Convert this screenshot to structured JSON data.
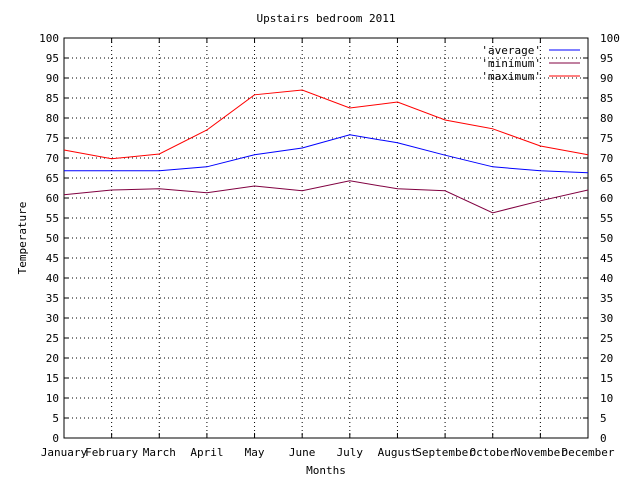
{
  "chart_data": {
    "type": "line",
    "title": "Upstairs bedroom 2011",
    "xlabel": "Months",
    "ylabel": "Temperature",
    "categories": [
      "January",
      "February",
      "March",
      "April",
      "May",
      "June",
      "July",
      "August",
      "September",
      "October",
      "November",
      "December"
    ],
    "ylim": [
      0,
      100
    ],
    "ytick_step": 5,
    "y2_mirrored": true,
    "grid": true,
    "legend_position": "top-right",
    "series": [
      {
        "name": "'average'",
        "color": "#0000ff",
        "values": [
          66.8,
          66.8,
          66.8,
          67.8,
          70.8,
          72.5,
          75.8,
          73.8,
          70.7,
          67.8,
          66.8,
          66.3
        ]
      },
      {
        "name": "'minimum'",
        "color": "#800040",
        "values": [
          60.8,
          62.0,
          62.3,
          61.3,
          63.0,
          61.8,
          64.3,
          62.3,
          61.8,
          56.3,
          59.3,
          62.0
        ]
      },
      {
        "name": "'maximum'",
        "color": "#ff0000",
        "values": [
          72.0,
          69.8,
          71.0,
          77.0,
          85.8,
          87.0,
          82.5,
          84.0,
          79.5,
          77.3,
          73.0,
          70.8
        ]
      }
    ]
  }
}
